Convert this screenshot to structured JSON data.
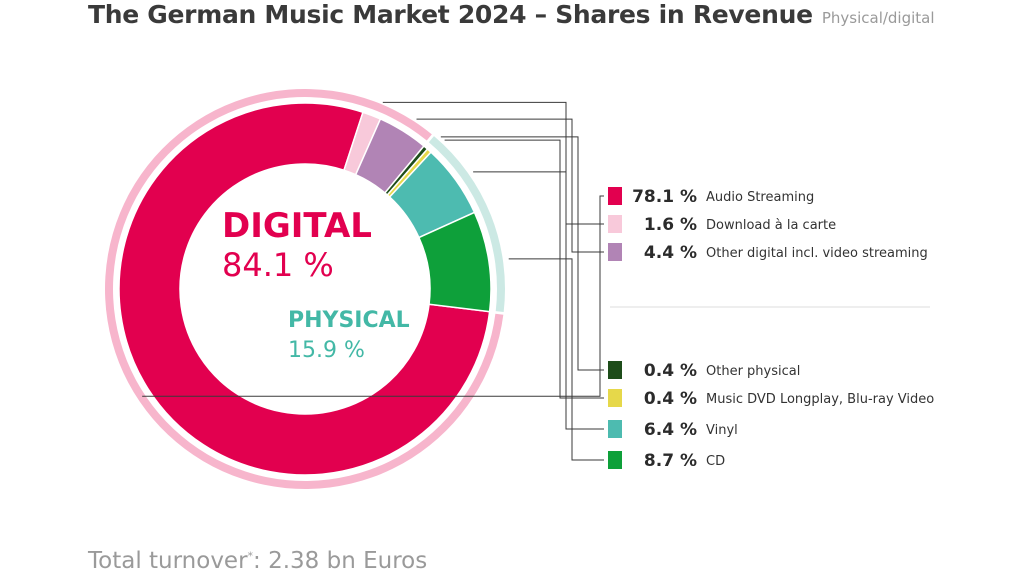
{
  "header": {
    "title": "The German Music Market 2024 – Shares in Revenue",
    "subtitle": "Physical/digital"
  },
  "groups": {
    "digital": {
      "label": "DIGITAL",
      "value": "84.1 %",
      "color": "#e2004f",
      "ring_color": "#f7b5cc"
    },
    "physical": {
      "label": "PHYSICAL",
      "value": "15.9 %",
      "color": "#43b8a6",
      "ring_color": "#cce9e4"
    }
  },
  "chart_data": {
    "type": "pie",
    "style": "donut with outer group ring",
    "title": "The German Music Market 2024 – Shares in Revenue",
    "subtitle": "Physical/digital",
    "slices": [
      {
        "label": "Audio Streaming",
        "value": 78.1,
        "display": "78.1 %",
        "group": "digital",
        "color": "#e2004f"
      },
      {
        "label": "Download à la carte",
        "value": 1.6,
        "display": "1.6 %",
        "group": "digital",
        "color": "#f8c9da"
      },
      {
        "label": "Other digital incl. video streaming",
        "value": 4.4,
        "display": "4.4 %",
        "group": "digital",
        "color": "#b184b5"
      },
      {
        "label": "Other physical",
        "value": 0.4,
        "display": "0.4 %",
        "group": "physical",
        "color": "#1e4d1a"
      },
      {
        "label": "Music DVD Longplay, Blu-ray Video",
        "value": 0.4,
        "display": "0.4 %",
        "group": "physical",
        "color": "#e6d84a"
      },
      {
        "label": "Vinyl",
        "value": 6.4,
        "display": "6.4 %",
        "group": "physical",
        "color": "#4dbbb0"
      },
      {
        "label": "CD",
        "value": 8.7,
        "display": "8.7 %",
        "group": "physical",
        "color": "#0ea03a"
      }
    ],
    "group_totals": [
      {
        "label": "DIGITAL",
        "value": 84.1
      },
      {
        "label": "PHYSICAL",
        "value": 15.9
      }
    ]
  },
  "footer": {
    "text": "Total turnover",
    "asterisk": "*",
    "value": ": 2.38 bn Euros"
  }
}
